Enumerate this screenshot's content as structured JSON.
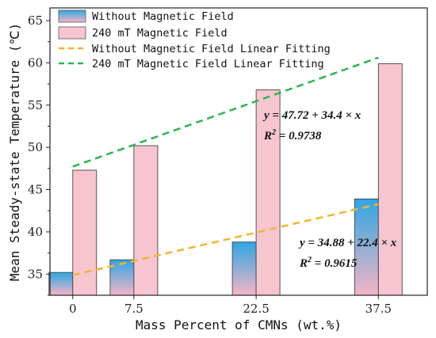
{
  "chart_data": {
    "type": "bar",
    "title": "",
    "xlabel": "Mass Percent of CMNs (wt.%)",
    "ylabel": "Mean Steady-state Temperature (℃)",
    "categories": [
      "0",
      "7.5",
      "22.5",
      "37.5"
    ],
    "category_positions": [
      0,
      7.5,
      22.5,
      37.5
    ],
    "xlim": [
      -2.8,
      43.5
    ],
    "ylim": [
      32.5,
      66.5
    ],
    "yticks": [
      35,
      40,
      45,
      50,
      55,
      60,
      65
    ],
    "grid": false,
    "legend_position": "top-left",
    "series": [
      {
        "name": "Without Magnetic Field",
        "values": [
          35.2,
          36.7,
          38.8,
          43.9
        ],
        "colors": {
          "top": "#2ea6e4",
          "bottom": "#f5b5c6"
        }
      },
      {
        "name": "240 mT Magnetic Field",
        "values": [
          47.3,
          50.2,
          56.8,
          59.9
        ],
        "colors": {
          "top": "#f7c5d0",
          "bottom": "#f7c5d0"
        }
      }
    ],
    "fits": [
      {
        "name": "Without Magnetic Field Linear Fitting",
        "intercept": 34.88,
        "slope_per_unit": 0.224,
        "x_range": [
          0,
          37.5
        ],
        "color": "#f2b52a",
        "equation": "y = 34.88 + 22.4 × x",
        "r2_label": "R",
        "r2_sup": "2",
        "r2_value": " = 0.9615"
      },
      {
        "name": "240 mT Magnetic Field Linear Fitting",
        "intercept": 47.72,
        "slope_per_unit": 0.344,
        "x_range": [
          0,
          37.5
        ],
        "color": "#2ab54f",
        "equation": "y = 47.72 + 34.4 × x",
        "r2_label": "R",
        "r2_sup": "2",
        "r2_value": " = 0.9738"
      }
    ]
  }
}
